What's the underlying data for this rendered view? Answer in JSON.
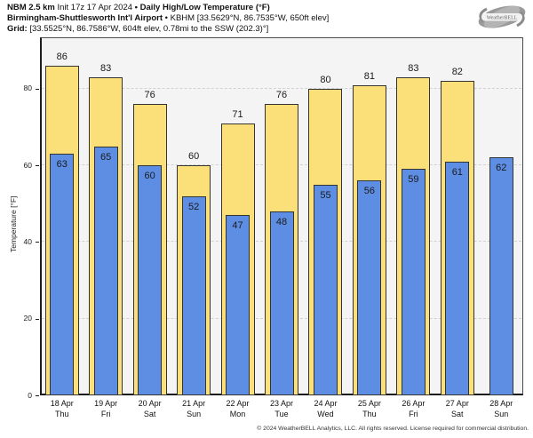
{
  "header": {
    "model": "NBM 2.5 km",
    "init": "Init 17z 17 Apr 2024",
    "separator": "•",
    "product": "Daily High/Low Temperature (°F)",
    "station": "Birmingham-Shuttlesworth Int'l Airport",
    "station_info": "KBHM [33.5629°N, 86.7535°W, 650ft elev]",
    "grid_label": "Grid:",
    "grid_info": "[33.5525°N, 86.7586°W, 604ft elev, 0.78mi to the SSW (202.3)°]"
  },
  "logo": {
    "name": "WeatherBELL"
  },
  "chart_data": {
    "type": "bar",
    "title": "NBM 2.5 km Init 17z 17 Apr 2024 • Daily High/Low Temperature (°F)",
    "xlabel": "",
    "ylabel": "Temperature [°F]",
    "ylim": [
      0,
      93.4
    ],
    "yticks": [
      0,
      20,
      40,
      60,
      80
    ],
    "grid": "horizontal-dashed",
    "legend_position": "none",
    "categories": [
      {
        "date": "18 Apr",
        "day": "Thu"
      },
      {
        "date": "19 Apr",
        "day": "Fri"
      },
      {
        "date": "20 Apr",
        "day": "Sat"
      },
      {
        "date": "21 Apr",
        "day": "Sun"
      },
      {
        "date": "22 Apr",
        "day": "Mon"
      },
      {
        "date": "23 Apr",
        "day": "Tue"
      },
      {
        "date": "24 Apr",
        "day": "Wed"
      },
      {
        "date": "25 Apr",
        "day": "Thu"
      },
      {
        "date": "26 Apr",
        "day": "Fri"
      },
      {
        "date": "27 Apr",
        "day": "Sat"
      },
      {
        "date": "28 Apr",
        "day": "Sun"
      }
    ],
    "series": [
      {
        "name": "Daily High",
        "color": "#FBDF78",
        "values": [
          86,
          83,
          76,
          60,
          71,
          76,
          80,
          81,
          83,
          82,
          null
        ]
      },
      {
        "name": "Daily Low",
        "color": "#5E8EE4",
        "values": [
          63,
          65,
          60,
          52,
          47,
          48,
          55,
          56,
          59,
          61,
          62
        ]
      }
    ]
  },
  "footer": {
    "copyright": "© 2024 WeatherBELL Analytics, LLC. All rights reserved. License required for commercial distribution."
  }
}
